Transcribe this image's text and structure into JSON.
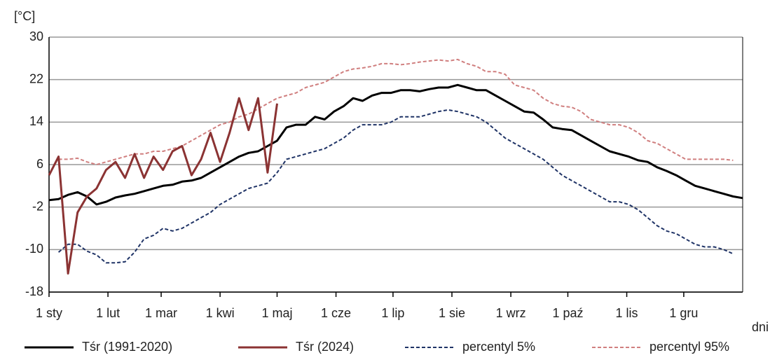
{
  "chart_data": {
    "type": "line",
    "y_label": "[°C]",
    "x_label": "dni",
    "x": [
      1,
      6,
      11,
      16,
      21,
      26,
      31,
      36,
      41,
      46,
      51,
      56,
      61,
      66,
      71,
      76,
      81,
      86,
      91,
      96,
      101,
      106,
      111,
      116,
      121,
      126,
      131,
      136,
      141,
      146,
      151,
      156,
      161,
      166,
      171,
      176,
      181,
      186,
      191,
      196,
      201,
      206,
      211,
      216,
      221,
      226,
      231,
      236,
      241,
      246,
      251,
      256,
      261,
      266,
      271,
      276,
      281,
      286,
      291,
      296,
      301,
      306,
      311,
      316,
      321,
      326,
      331,
      336,
      341,
      346,
      351,
      356,
      361,
      366
    ],
    "series": [
      {
        "name": "Tśr (1991-2020)",
        "color": "#000000",
        "dash": false,
        "width": 3,
        "values": [
          -0.7,
          -0.5,
          0.3,
          0.8,
          0,
          -1.5,
          -1,
          -0.2,
          0.2,
          0.5,
          1,
          1.5,
          2,
          2.2,
          2.8,
          3,
          3.5,
          4.5,
          5.5,
          6.5,
          7.5,
          8.2,
          8.5,
          9.5,
          10.5,
          13,
          13.5,
          13.5,
          15,
          14.5,
          16,
          17,
          18.5,
          18,
          19,
          19.5,
          19.5,
          20,
          20,
          19.8,
          20.2,
          20.5,
          20.5,
          21,
          20.5,
          20,
          20,
          19,
          18,
          17,
          16,
          15.8,
          14.5,
          13,
          12.7,
          12.5,
          11.5,
          10.5,
          9.5,
          8.5,
          8,
          7.5,
          6.8,
          6.5,
          5.5,
          4.8,
          4,
          3,
          2,
          1.5,
          1,
          0.5,
          0,
          -0.3
        ]
      },
      {
        "name": "Tśr (2024)",
        "color": "#8b3333",
        "dash": false,
        "width": 3,
        "values": [
          4,
          7.5,
          -14.5,
          -3,
          0,
          1.5,
          5,
          6.5,
          3.5,
          8,
          3.5,
          7.5,
          5,
          8.5,
          9.5,
          4,
          7,
          12,
          6.5,
          12,
          18.5,
          12.5,
          18.5,
          4.5,
          17.5,
          null,
          null,
          null,
          null,
          null,
          null,
          null,
          null,
          null,
          null,
          null,
          null,
          null,
          null,
          null,
          null,
          null,
          null,
          null,
          null,
          null,
          null,
          null,
          null,
          null,
          null,
          null,
          null,
          null,
          null,
          null,
          null,
          null,
          null,
          null,
          null,
          null,
          null,
          null,
          null,
          null,
          null,
          null,
          null,
          null,
          null,
          null,
          null,
          null
        ]
      },
      {
        "name": "percentyl 5%",
        "color": "#1f3366",
        "dash": true,
        "width": 2,
        "values": [
          null,
          -10.5,
          -9,
          -9,
          -10.3,
          -11,
          -12.5,
          -12.5,
          -12.3,
          -10.5,
          -8,
          -7.3,
          -6,
          -6.5,
          -6,
          -5,
          -4,
          -3,
          -1.5,
          -0.5,
          0.5,
          1.5,
          2,
          2.5,
          4.5,
          7,
          7.5,
          8,
          8.5,
          9,
          10,
          11,
          12.5,
          13.5,
          13.5,
          13.5,
          14,
          15,
          15,
          15,
          15.5,
          16,
          16.3,
          16,
          15.5,
          15,
          14,
          12.5,
          11,
          10,
          9,
          8,
          7,
          5.5,
          4,
          3,
          2,
          1,
          0,
          -1,
          -1,
          -1.5,
          -2.5,
          -4,
          -5.5,
          -6.5,
          -7,
          -8,
          -9,
          -9.5,
          -9.5,
          -10,
          -10.8,
          null
        ]
      },
      {
        "name": "percentyl 95%",
        "color": "#d07f7f",
        "dash": true,
        "width": 2,
        "values": [
          null,
          7,
          7,
          7.2,
          6.5,
          6,
          6.5,
          7,
          7.5,
          8,
          8,
          8.5,
          8.5,
          9,
          9.5,
          10.5,
          11.5,
          12.5,
          13.5,
          14,
          15,
          15.5,
          16.5,
          17.5,
          18.5,
          19,
          19.5,
          20.5,
          21,
          21.5,
          22.5,
          23.5,
          24,
          24.2,
          24.5,
          25,
          25,
          24.8,
          25,
          25.3,
          25.5,
          25.7,
          25.5,
          25.8,
          25,
          24.5,
          23.5,
          23.5,
          23,
          21,
          20.5,
          20,
          18.5,
          17.5,
          17,
          16.8,
          16,
          14.5,
          14,
          13.5,
          13.5,
          13,
          12,
          10.5,
          10,
          9,
          8,
          7,
          7,
          7,
          7,
          7,
          6.8,
          null
        ]
      }
    ],
    "xlim": [
      1,
      366
    ],
    "xticks": [
      {
        "value": 1,
        "label": "1 sty"
      },
      {
        "value": 32,
        "label": "1 lut"
      },
      {
        "value": 60,
        "label": "1 mar"
      },
      {
        "value": 91,
        "label": "1 kwi"
      },
      {
        "value": 121,
        "label": "1 maj"
      },
      {
        "value": 152,
        "label": "1 cze"
      },
      {
        "value": 182,
        "label": "1 lip"
      },
      {
        "value": 213,
        "label": "1 sie"
      },
      {
        "value": 244,
        "label": "1 wrz"
      },
      {
        "value": 274,
        "label": "1 paź"
      },
      {
        "value": 305,
        "label": "1 lis"
      },
      {
        "value": 335,
        "label": "1 gru"
      }
    ],
    "ylim": [
      -18,
      30
    ],
    "yticks": [
      -18,
      -10,
      -2,
      6,
      14,
      22,
      30
    ],
    "grid": true,
    "legend": "bottom"
  }
}
